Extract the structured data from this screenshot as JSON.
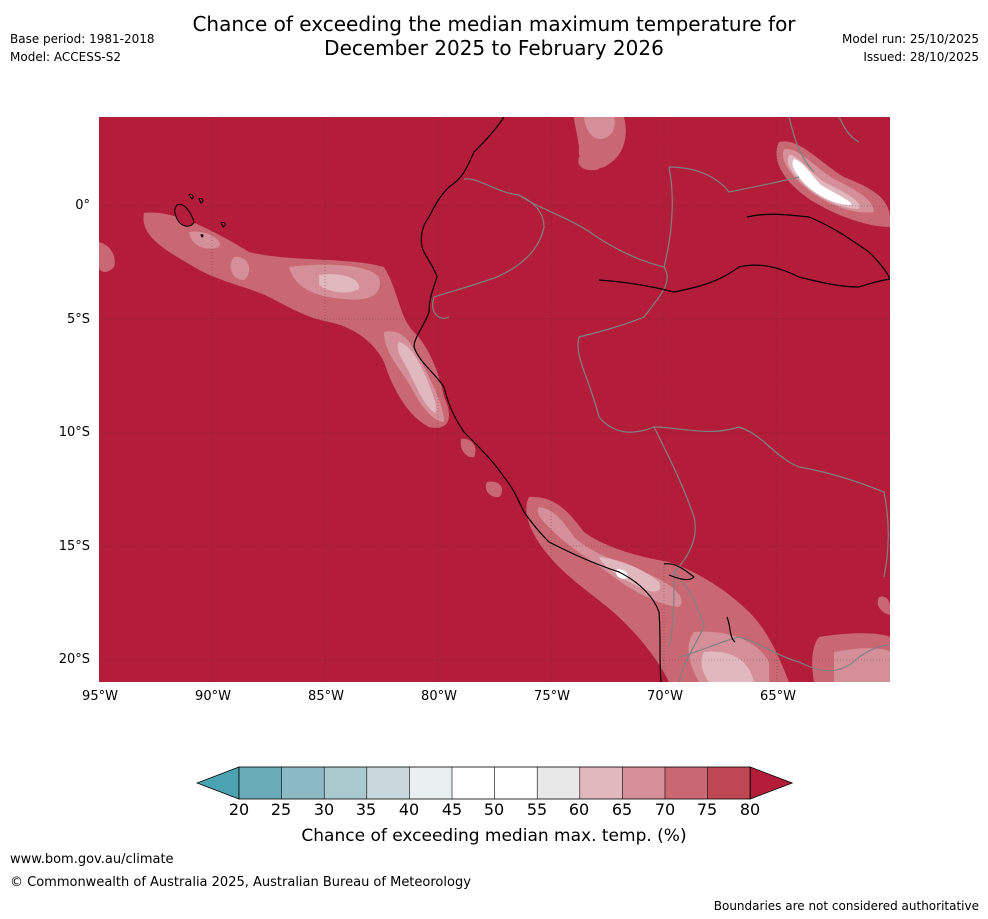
{
  "title_line1": "Chance of exceeding the median maximum temperature for",
  "title_line2": "December 2025 to February 2026",
  "base_period": "Base period: 1981-2018",
  "model": "Model: ACCESS-S2",
  "model_run": "Model run: 25/10/2025",
  "issued": "Issued: 28/10/2025",
  "lat_labels": [
    "0°",
    "5°S",
    "10°S",
    "15°S",
    "20°S"
  ],
  "lon_labels": [
    "95°W",
    "90°W",
    "85°W",
    "80°W",
    "75°W",
    "70°W",
    "65°W"
  ],
  "colorbar": {
    "ticks": [
      "20",
      "25",
      "30",
      "35",
      "40",
      "45",
      "50",
      "55",
      "60",
      "65",
      "70",
      "75",
      "80"
    ],
    "colors": [
      "#6aabb8",
      "#8bbac5",
      "#aac9cf",
      "#c9d8dd",
      "#e9eff1",
      "#ffffff",
      "#ffffff",
      "#e8e8e8",
      "#e1b8be",
      "#d58f98",
      "#c96772",
      "#bd4752"
    ],
    "under_color": "#4ba2b0",
    "over_color": "#b31d3a",
    "label": "Chance of exceeding median max. temp. (%)"
  },
  "map": {
    "background_color": "#b31d3a"
  },
  "footer_url": "www.bom.gov.au/climate",
  "footer_copyright": "© Commonwealth of Australia 2025, Australian Bureau of Meteorology",
  "disclaimer": "Boundaries are not considered authoritative"
}
